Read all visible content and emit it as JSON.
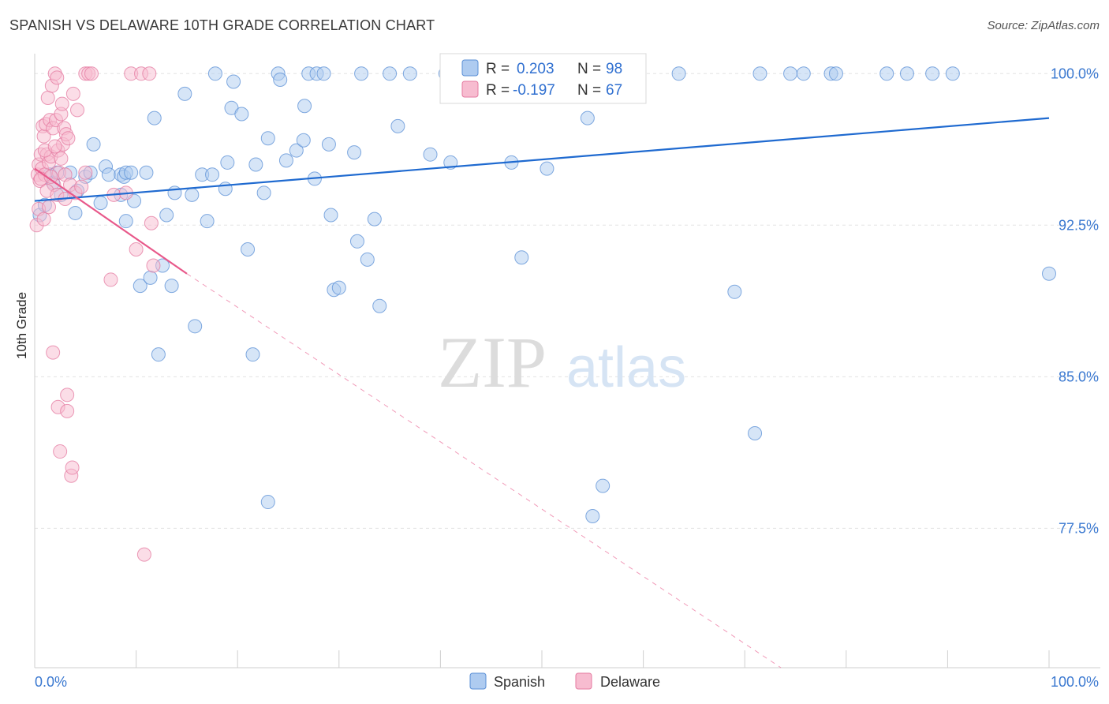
{
  "title": "SPANISH VS DELAWARE 10TH GRADE CORRELATION CHART",
  "source": "Source: ZipAtlas.com",
  "watermark": {
    "zip": "ZIP",
    "atlas": "atlas"
  },
  "colors": {
    "spanish_fill": "#aecbf0",
    "spanish_stroke": "#5a8fd6",
    "spanish_line": "#1f6ad0",
    "delaware_fill": "#f7bcd0",
    "delaware_stroke": "#e47aa0",
    "delaware_line": "#e8588a",
    "axis_text": "#3a78d0",
    "grid": "#e3e3e3"
  },
  "legend": [
    {
      "r_label": "R =",
      "r_value": "0.203",
      "n_label": "N =",
      "n_value": "98"
    },
    {
      "r_label": "R =",
      "r_value": "-0.197",
      "n_label": "N =",
      "n_value": "67"
    }
  ],
  "chart_data": {
    "type": "scatter",
    "title": "SPANISH VS DELAWARE 10TH GRADE CORRELATION CHART",
    "xlabel": "",
    "ylabel": "10th Grade",
    "xlim": [
      0,
      100
    ],
    "ylim": [
      70.6,
      101.3
    ],
    "x_tick_labels": [
      {
        "value": 0,
        "label": "0.0%"
      },
      {
        "value": 100,
        "label": "100.0%"
      }
    ],
    "y_tick_labels": [
      {
        "value": 100,
        "label": "100.0%"
      },
      {
        "value": 92.5,
        "label": "92.5%"
      },
      {
        "value": 85,
        "label": "85.0%"
      },
      {
        "value": 77.5,
        "label": "77.5%"
      }
    ],
    "x_minor_ticks": [
      0,
      10,
      20,
      30,
      40,
      50,
      60,
      70,
      80,
      90,
      100
    ],
    "series": [
      {
        "name": "Spanish",
        "trend": {
          "x": [
            0,
            100
          ],
          "y": [
            93.7,
            97.8
          ],
          "dashed_to": null
        },
        "points": [
          [
            0.5,
            93.0
          ],
          [
            1.0,
            93.5
          ],
          [
            1.5,
            95.0
          ],
          [
            1.8,
            94.6
          ],
          [
            2.2,
            95.1
          ],
          [
            2.6,
            94.0
          ],
          [
            3.5,
            95.1
          ],
          [
            4.0,
            93.1
          ],
          [
            4.2,
            94.2
          ],
          [
            5.0,
            94.9
          ],
          [
            5.5,
            95.1
          ],
          [
            5.8,
            96.5
          ],
          [
            6.5,
            93.6
          ],
          [
            7.0,
            95.4
          ],
          [
            7.3,
            95.0
          ],
          [
            8.5,
            94.0
          ],
          [
            8.5,
            95.0
          ],
          [
            8.8,
            94.9
          ],
          [
            9.0,
            92.7
          ],
          [
            9.0,
            95.1
          ],
          [
            9.5,
            95.1
          ],
          [
            9.8,
            93.7
          ],
          [
            10.4,
            89.5
          ],
          [
            11.0,
            95.1
          ],
          [
            11.4,
            89.9
          ],
          [
            11.8,
            97.8
          ],
          [
            12.2,
            86.1
          ],
          [
            12.6,
            90.5
          ],
          [
            13.0,
            93.0
          ],
          [
            13.5,
            89.5
          ],
          [
            13.8,
            94.1
          ],
          [
            14.8,
            99.0
          ],
          [
            15.5,
            94.0
          ],
          [
            15.8,
            87.5
          ],
          [
            16.5,
            95.0
          ],
          [
            17.0,
            92.7
          ],
          [
            17.5,
            95.0
          ],
          [
            17.8,
            100.0
          ],
          [
            18.8,
            94.3
          ],
          [
            19.0,
            95.6
          ],
          [
            19.4,
            98.3
          ],
          [
            19.6,
            99.6
          ],
          [
            20.4,
            98.0
          ],
          [
            21.0,
            91.3
          ],
          [
            21.5,
            86.1
          ],
          [
            21.8,
            95.5
          ],
          [
            22.6,
            94.1
          ],
          [
            23.0,
            96.8
          ],
          [
            23.0,
            78.8
          ],
          [
            24.0,
            100.0
          ],
          [
            24.2,
            99.7
          ],
          [
            24.8,
            95.7
          ],
          [
            25.8,
            96.2
          ],
          [
            26.5,
            96.7
          ],
          [
            26.6,
            98.4
          ],
          [
            27.0,
            100.0
          ],
          [
            27.6,
            94.8
          ],
          [
            27.8,
            100.0
          ],
          [
            28.5,
            100.0
          ],
          [
            29.0,
            96.5
          ],
          [
            29.2,
            93.0
          ],
          [
            29.5,
            89.3
          ],
          [
            30.0,
            89.4
          ],
          [
            31.5,
            96.1
          ],
          [
            31.8,
            91.7
          ],
          [
            32.2,
            100.0
          ],
          [
            32.8,
            90.8
          ],
          [
            33.5,
            92.8
          ],
          [
            34.0,
            88.5
          ],
          [
            35.0,
            100.0
          ],
          [
            35.8,
            97.4
          ],
          [
            37.0,
            100.0
          ],
          [
            39.0,
            96.0
          ],
          [
            40.5,
            100.0
          ],
          [
            41.0,
            95.6
          ],
          [
            42.0,
            100.0
          ],
          [
            43.5,
            99.6
          ],
          [
            45.0,
            100.0
          ],
          [
            47.0,
            95.6
          ],
          [
            48.0,
            100.0
          ],
          [
            48.0,
            90.9
          ],
          [
            50.5,
            95.3
          ],
          [
            51.5,
            100.0
          ],
          [
            53.0,
            100.0
          ],
          [
            54.5,
            97.8
          ],
          [
            55.0,
            78.1
          ],
          [
            56.0,
            79.6
          ],
          [
            59.0,
            100.0
          ],
          [
            63.5,
            100.0
          ],
          [
            69.0,
            89.2
          ],
          [
            71.0,
            82.2
          ],
          [
            71.5,
            100.0
          ],
          [
            74.5,
            100.0
          ],
          [
            75.8,
            100.0
          ],
          [
            78.5,
            100.0
          ],
          [
            79.0,
            100.0
          ],
          [
            84.0,
            100.0
          ],
          [
            86.0,
            100.0
          ],
          [
            88.5,
            100.0
          ],
          [
            90.5,
            100.0
          ],
          [
            100.0,
            90.1
          ]
        ]
      },
      {
        "name": "Delaware",
        "trend": {
          "x": [
            0,
            15
          ],
          "y": [
            95.3,
            90.1
          ],
          "dashed_to": [
            100,
            61.8
          ]
        },
        "points": [
          [
            0.2,
            92.5
          ],
          [
            0.3,
            95.0
          ],
          [
            0.4,
            95.5
          ],
          [
            0.5,
            94.7
          ],
          [
            0.6,
            96.0
          ],
          [
            0.7,
            95.3
          ],
          [
            0.8,
            97.4
          ],
          [
            0.9,
            96.9
          ],
          [
            1.0,
            95.0
          ],
          [
            1.1,
            97.5
          ],
          [
            1.2,
            96.0
          ],
          [
            1.3,
            98.8
          ],
          [
            1.4,
            95.6
          ],
          [
            1.5,
            97.7
          ],
          [
            1.6,
            95.9
          ],
          [
            1.7,
            99.4
          ],
          [
            1.8,
            97.3
          ],
          [
            1.8,
            86.2
          ],
          [
            1.9,
            94.5
          ],
          [
            2.0,
            100.0
          ],
          [
            2.1,
            97.7
          ],
          [
            2.2,
            99.8
          ],
          [
            2.3,
            96.2
          ],
          [
            2.3,
            83.5
          ],
          [
            2.4,
            95.1
          ],
          [
            2.5,
            81.3
          ],
          [
            2.6,
            98.0
          ],
          [
            2.7,
            98.5
          ],
          [
            2.8,
            96.5
          ],
          [
            2.9,
            97.3
          ],
          [
            3.0,
            95.0
          ],
          [
            3.1,
            97.0
          ],
          [
            3.2,
            84.1
          ],
          [
            3.2,
            83.3
          ],
          [
            3.3,
            96.8
          ],
          [
            3.5,
            94.5
          ],
          [
            3.6,
            80.1
          ],
          [
            3.7,
            80.5
          ],
          [
            3.8,
            99.0
          ],
          [
            4.2,
            98.2
          ],
          [
            5.0,
            95.1
          ],
          [
            5.0,
            100.0
          ],
          [
            5.3,
            100.0
          ],
          [
            5.6,
            100.0
          ],
          [
            7.5,
            89.8
          ],
          [
            7.8,
            94.0
          ],
          [
            9.0,
            94.1
          ],
          [
            9.5,
            100.0
          ],
          [
            10.0,
            91.3
          ],
          [
            10.5,
            100.0
          ],
          [
            10.8,
            76.2
          ],
          [
            11.3,
            100.0
          ],
          [
            11.5,
            92.6
          ],
          [
            11.7,
            90.5
          ],
          [
            0.4,
            93.3
          ],
          [
            0.6,
            94.8
          ],
          [
            0.9,
            92.8
          ],
          [
            1.0,
            96.2
          ],
          [
            1.2,
            94.2
          ],
          [
            1.4,
            93.4
          ],
          [
            1.6,
            94.9
          ],
          [
            2.0,
            96.4
          ],
          [
            2.2,
            94.0
          ],
          [
            2.6,
            95.8
          ],
          [
            3.0,
            93.8
          ],
          [
            4.0,
            94.1
          ],
          [
            4.6,
            94.4
          ]
        ]
      }
    ]
  }
}
